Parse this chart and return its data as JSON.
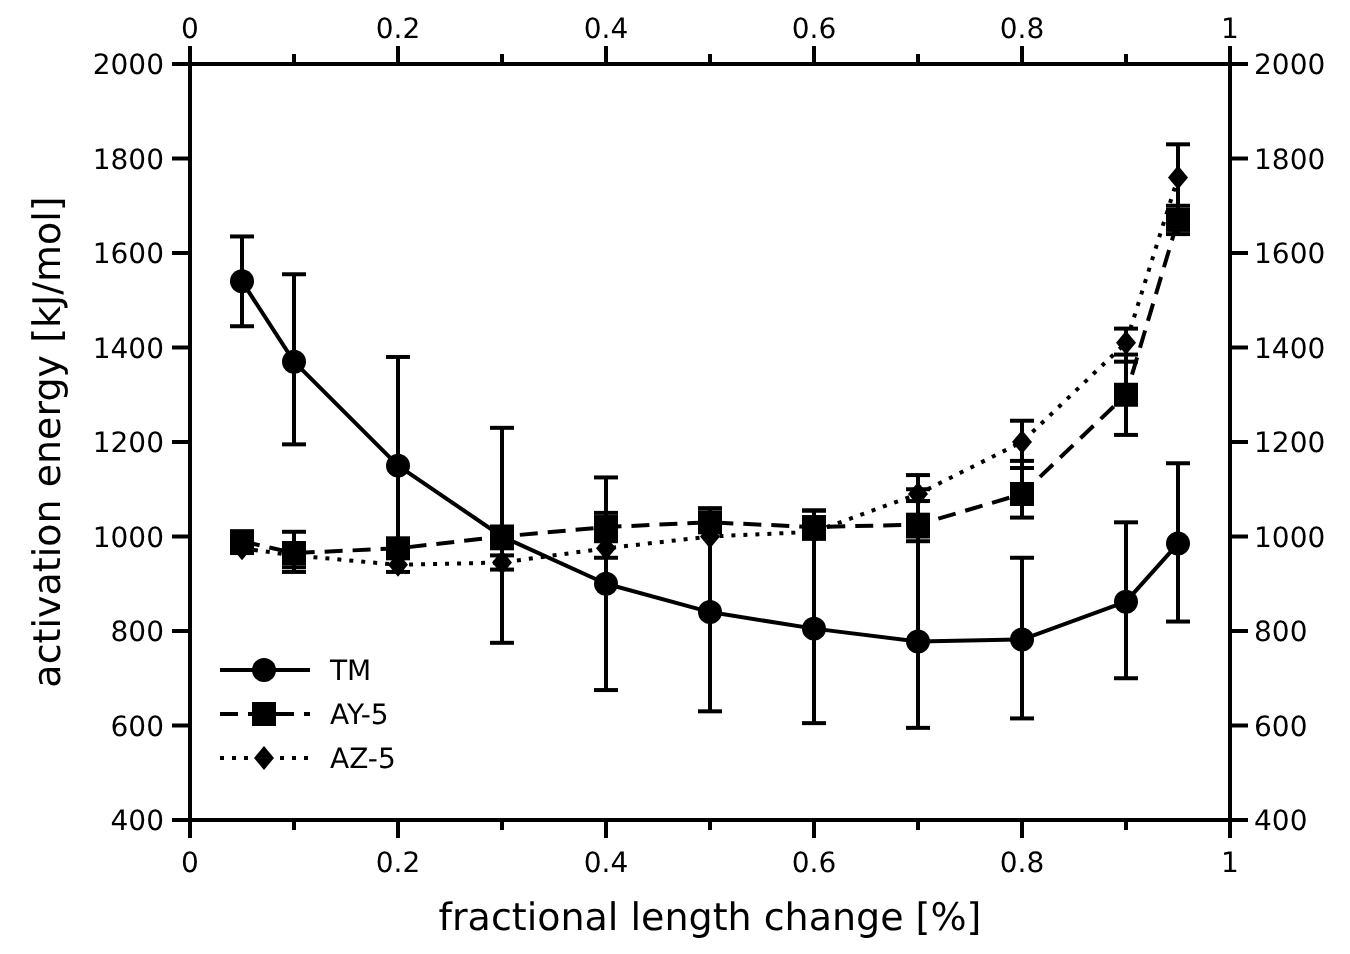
{
  "chart_data": {
    "type": "line",
    "xlabel": "fractional length change [%]",
    "ylabel": "activation energy [kJ/mol]",
    "x": [
      0.05,
      0.1,
      0.2,
      0.3,
      0.4,
      0.5,
      0.6,
      0.7,
      0.8,
      0.9,
      0.95
    ],
    "series": [
      {
        "name": "TM",
        "color": "#000000",
        "marker": "circle",
        "line_style": "solid",
        "values": [
          1540,
          1370,
          1150,
          1000,
          900,
          840,
          805,
          778,
          782,
          862,
          985
        ],
        "errors": [
          [
            1445,
            1635
          ],
          [
            1195,
            1555
          ],
          [
            925,
            1380
          ],
          [
            775,
            1230
          ],
          [
            675,
            1125
          ],
          [
            630,
            1050
          ],
          [
            605,
            1055
          ],
          [
            595,
            1100
          ],
          [
            615,
            955
          ],
          [
            700,
            1030
          ],
          [
            820,
            1155
          ]
        ]
      },
      {
        "name": "AY-5",
        "color": "#000000",
        "marker": "square",
        "line_style": "dashed",
        "values": [
          990,
          965,
          975,
          1000,
          1020,
          1030,
          1020,
          1025,
          1090,
          1300,
          1670
        ],
        "errors": [
          [
            965,
            1010
          ],
          [
            925,
            1010
          ],
          null,
          [
            975,
            1020
          ],
          [
            990,
            1050
          ],
          [
            1030,
            1060
          ],
          [
            995,
            1055
          ],
          [
            990,
            1075
          ],
          [
            1040,
            1160
          ],
          [
            1215,
            1385
          ],
          [
            1640,
            1700
          ]
        ]
      },
      {
        "name": "AZ-5",
        "color": "#000000",
        "marker": "diamond",
        "line_style": "dotted",
        "values": [
          975,
          960,
          940,
          945,
          975,
          1000,
          1010,
          1090,
          1200,
          1410,
          1760
        ],
        "errors": [
          null,
          [
            935,
            985
          ],
          null,
          [
            930,
            960
          ],
          [
            955,
            995
          ],
          null,
          null,
          [
            1000,
            1130
          ],
          [
            1145,
            1245
          ],
          [
            1370,
            1440
          ],
          [
            1690,
            1830
          ]
        ]
      }
    ],
    "xlim": [
      0,
      1
    ],
    "xticks": [
      0,
      {
        "value": 0.1,
        "label": null
      },
      0.2,
      {
        "value": 0.3,
        "label": null
      },
      0.4,
      {
        "value": 0.5,
        "label": null
      },
      0.6,
      {
        "value": 0.7,
        "label": null
      },
      0.8,
      {
        "value": 0.9,
        "label": null
      },
      1
    ],
    "x2lim": [
      0,
      1
    ],
    "x2ticks": [
      0,
      {
        "value": 0.1,
        "label": null
      },
      0.2,
      {
        "value": 0.3,
        "label": null
      },
      0.4,
      {
        "value": 0.5,
        "label": null
      },
      0.6,
      {
        "value": 0.7,
        "label": null
      },
      0.8,
      {
        "value": 0.9,
        "label": null
      },
      1
    ],
    "ylim": [
      400,
      2000
    ],
    "yticks": [
      400,
      600,
      800,
      1000,
      1200,
      1400,
      1600,
      1800,
      2000
    ],
    "y2lim": [
      400,
      2000
    ],
    "y2ticks": [
      400,
      600,
      800,
      1000,
      1200,
      1400,
      1600,
      1800,
      2000
    ],
    "legend": "bottom left",
    "grid": false
  }
}
